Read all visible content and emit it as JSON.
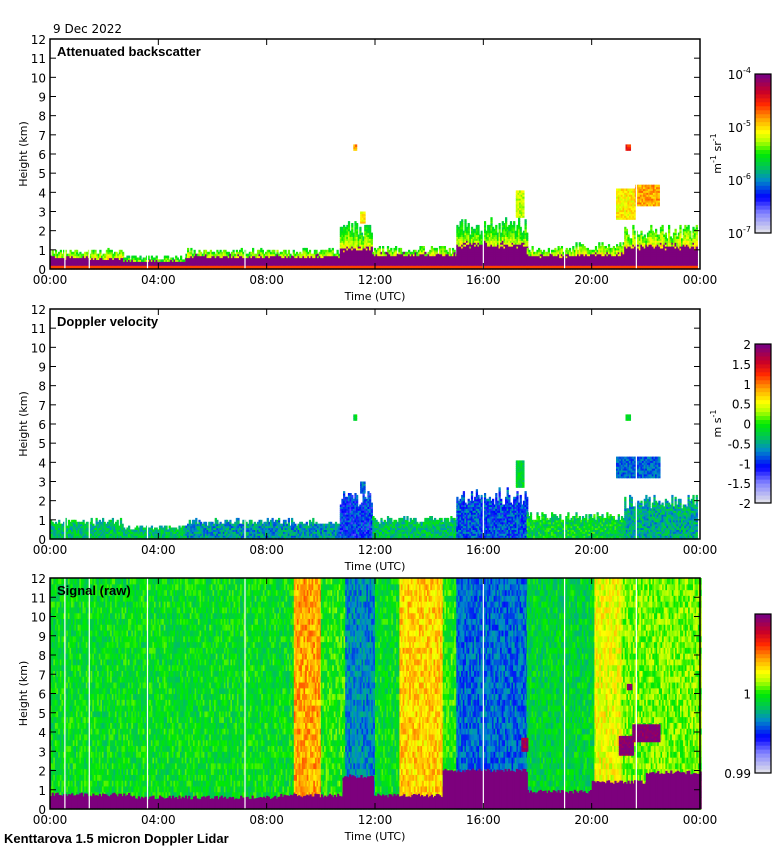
{
  "date_label": "9 Dec 2022",
  "footer": "Kenttarova 1.5 micron Doppler Lidar",
  "chart_data": [
    {
      "type": "heatmap",
      "title": "Attenuated backscatter",
      "xlabel": "Time (UTC)",
      "ylabel": "Height (km)",
      "xlim": [
        0,
        24
      ],
      "ylim": [
        0,
        12
      ],
      "xticks": [
        "00:00",
        "04:00",
        "08:00",
        "12:00",
        "16:00",
        "20:00",
        "00:00"
      ],
      "yticks": [
        "0",
        "1",
        "2",
        "3",
        "4",
        "5",
        "6",
        "7",
        "8",
        "9",
        "10",
        "11",
        "12"
      ],
      "colorbar": {
        "label": "m-1 sr-1",
        "label_parts": [
          "m",
          "-1",
          " sr",
          "-1"
        ],
        "scale": "log",
        "range": [
          1e-07,
          0.0001
        ],
        "ticks": [
          {
            "base": "10",
            "exp": "-7"
          },
          {
            "base": "10",
            "exp": "-6"
          },
          {
            "base": "10",
            "exp": "-5"
          },
          {
            "base": "10",
            "exp": "-4"
          }
        ]
      },
      "regions": [
        {
          "t0": 0,
          "t1": 1.4,
          "top": 0.9,
          "core": 0.6,
          "v": 0.85
        },
        {
          "t0": 1.4,
          "t1": 2.7,
          "top": 0.9,
          "core": 0.55,
          "v": 0.85
        },
        {
          "t0": 2.7,
          "t1": 5.0,
          "top": 0.6,
          "core": 0.4,
          "v": 0.8
        },
        {
          "t0": 5.0,
          "t1": 10.7,
          "top": 0.9,
          "core": 0.65,
          "v": 0.85
        },
        {
          "t0": 10.7,
          "t1": 11.9,
          "top": 2.2,
          "core": 1.1,
          "v": 0.8
        },
        {
          "t0": 11.9,
          "t1": 15.0,
          "top": 1.0,
          "core": 0.75,
          "v": 0.85
        },
        {
          "t0": 15.0,
          "t1": 17.6,
          "top": 2.3,
          "core": 1.3,
          "v": 0.8
        },
        {
          "t0": 17.6,
          "t1": 19.4,
          "top": 1.0,
          "core": 0.7,
          "v": 0.85
        },
        {
          "t0": 19.4,
          "t1": 21.2,
          "top": 1.2,
          "core": 0.75,
          "v": 0.85
        },
        {
          "t0": 21.2,
          "t1": 23.9,
          "top": 2.0,
          "core": 1.2,
          "v": 0.85
        }
      ],
      "features": [
        {
          "t0": 11.2,
          "t1": 11.3,
          "h0": 6.2,
          "h1": 6.4,
          "v": 0.72
        },
        {
          "t0": 11.45,
          "t1": 11.6,
          "h0": 2.4,
          "h1": 3.0,
          "v": 0.65
        },
        {
          "t0": 17.2,
          "t1": 17.5,
          "h0": 2.7,
          "h1": 4.1,
          "v": 0.6
        },
        {
          "t0": 21.25,
          "t1": 21.4,
          "h0": 6.2,
          "h1": 6.4,
          "v": 0.82
        },
        {
          "t0": 20.9,
          "t1": 21.6,
          "h0": 2.6,
          "h1": 4.2,
          "v": 0.65
        },
        {
          "t0": 21.6,
          "t1": 22.5,
          "h0": 3.3,
          "h1": 4.3,
          "v": 0.72
        }
      ]
    },
    {
      "type": "heatmap",
      "title": "Doppler velocity",
      "xlabel": "Time (UTC)",
      "ylabel": "Height (km)",
      "xlim": [
        0,
        24
      ],
      "ylim": [
        0,
        12
      ],
      "xticks": [
        "00:00",
        "04:00",
        "08:00",
        "12:00",
        "16:00",
        "20:00",
        "00:00"
      ],
      "yticks": [
        "0",
        "1",
        "2",
        "3",
        "4",
        "5",
        "6",
        "7",
        "8",
        "9",
        "10",
        "11",
        "12"
      ],
      "colorbar": {
        "label": "m s-1",
        "label_parts": [
          "m s",
          "-1"
        ],
        "scale": "linear",
        "range": [
          -2,
          2
        ],
        "ticks": [
          "-2",
          "-1.5",
          "-1",
          "-0.5",
          "0",
          "0.5",
          "1",
          "1.5",
          "2"
        ]
      },
      "regions": [
        {
          "t0": 0,
          "t1": 2.7,
          "top": 0.9,
          "v": 0.42
        },
        {
          "t0": 2.7,
          "t1": 5.0,
          "top": 0.6,
          "v": 0.42
        },
        {
          "t0": 5.0,
          "t1": 10.7,
          "top": 0.9,
          "v": 0.35
        },
        {
          "t0": 10.7,
          "t1": 11.9,
          "top": 2.2,
          "v": 0.25
        },
        {
          "t0": 11.9,
          "t1": 15.0,
          "top": 1.0,
          "v": 0.42
        },
        {
          "t0": 15.0,
          "t1": 17.6,
          "top": 2.3,
          "v": 0.28
        },
        {
          "t0": 17.6,
          "t1": 21.2,
          "top": 1.2,
          "v": 0.45
        },
        {
          "t0": 21.2,
          "t1": 23.9,
          "top": 2.0,
          "v": 0.38
        }
      ],
      "features": [
        {
          "t0": 11.2,
          "t1": 11.3,
          "h0": 6.2,
          "h1": 6.4,
          "v": 0.45
        },
        {
          "t0": 11.45,
          "t1": 11.6,
          "h0": 2.4,
          "h1": 3.0,
          "v": 0.3
        },
        {
          "t0": 17.2,
          "t1": 17.5,
          "h0": 2.7,
          "h1": 4.1,
          "v": 0.45
        },
        {
          "t0": 21.25,
          "t1": 21.4,
          "h0": 6.2,
          "h1": 6.4,
          "v": 0.45
        },
        {
          "t0": 20.9,
          "t1": 22.5,
          "h0": 3.2,
          "h1": 4.3,
          "v": 0.3
        }
      ]
    },
    {
      "type": "heatmap",
      "title": "Signal (raw)",
      "xlabel": "Time (UTC)",
      "ylabel": "Height (km)",
      "xlim": [
        0,
        24
      ],
      "ylim": [
        0,
        12
      ],
      "xticks": [
        "00:00",
        "04:00",
        "08:00",
        "12:00",
        "16:00",
        "20:00",
        "00:00"
      ],
      "yticks": [
        "0",
        "1",
        "2",
        "3",
        "4",
        "5",
        "6",
        "7",
        "8",
        "9",
        "10",
        "11",
        "12"
      ],
      "colorbar": {
        "label": "",
        "scale": "linear",
        "range": [
          0.99,
          1.01
        ],
        "ticks": [
          "0.99",
          "1"
        ]
      },
      "bands": [
        {
          "t0": 0,
          "t1": 9.0,
          "v": 0.47
        },
        {
          "t0": 9.0,
          "t1": 10.0,
          "v": 0.72
        },
        {
          "t0": 10.0,
          "t1": 10.9,
          "v": 0.5
        },
        {
          "t0": 10.9,
          "t1": 12.0,
          "v": 0.33
        },
        {
          "t0": 12.0,
          "t1": 12.9,
          "v": 0.47
        },
        {
          "t0": 12.9,
          "t1": 14.5,
          "v": 0.68
        },
        {
          "t0": 14.5,
          "t1": 15.0,
          "v": 0.5
        },
        {
          "t0": 15.0,
          "t1": 17.6,
          "v": 0.3
        },
        {
          "t0": 17.6,
          "t1": 20.1,
          "v": 0.45
        },
        {
          "t0": 20.1,
          "t1": 21.1,
          "v": 0.63
        },
        {
          "t0": 21.1,
          "t1": 24,
          "v": 0.55
        }
      ],
      "ground": [
        {
          "t0": 0,
          "t1": 3.0,
          "top": 0.75
        },
        {
          "t0": 3.0,
          "t1": 8.5,
          "top": 0.6
        },
        {
          "t0": 8.5,
          "t1": 10.8,
          "top": 0.7
        },
        {
          "t0": 10.8,
          "t1": 11.9,
          "top": 1.7
        },
        {
          "t0": 11.9,
          "t1": 14.5,
          "top": 0.7
        },
        {
          "t0": 14.5,
          "t1": 17.6,
          "top": 2.0
        },
        {
          "t0": 17.6,
          "t1": 20.0,
          "top": 0.9
        },
        {
          "t0": 20.0,
          "t1": 22.0,
          "top": 1.4
        },
        {
          "t0": 22.0,
          "t1": 24,
          "top": 1.9
        }
      ],
      "features": [
        {
          "t0": 21.0,
          "t1": 21.5,
          "h0": 2.8,
          "h1": 3.8,
          "v": 1.0
        },
        {
          "t0": 21.5,
          "t1": 22.5,
          "h0": 3.5,
          "h1": 4.3,
          "v": 1.0
        },
        {
          "t0": 21.3,
          "t1": 21.45,
          "h0": 6.2,
          "h1": 6.4,
          "v": 1.0
        },
        {
          "t0": 17.4,
          "t1": 17.6,
          "h0": 3.0,
          "h1": 3.7,
          "v": 0.95
        }
      ]
    }
  ]
}
